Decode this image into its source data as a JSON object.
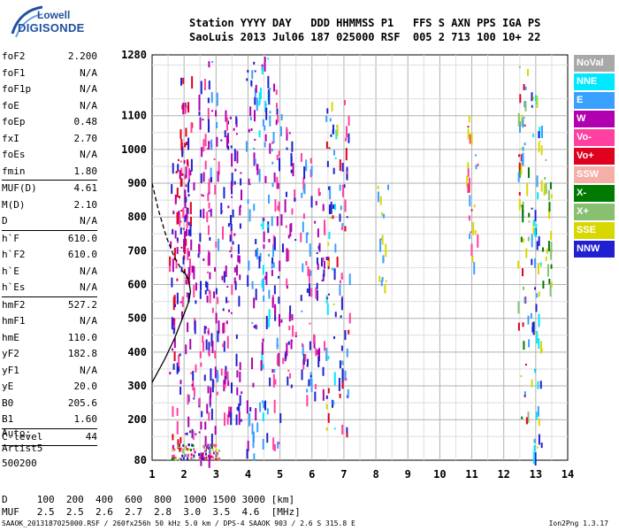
{
  "logo": {
    "line1": "Lowell",
    "line2": "DIGISONDE"
  },
  "header": {
    "row1": "Station YYYY DAY   DDD HHMMSS P1   FFS S AXN PPS IGA PS",
    "row2": "SaoLuis 2013 Jul06 187 025000 RSF  005 2 713 100 10+ 22"
  },
  "params": [
    {
      "label": "foF2",
      "value": "2.200"
    },
    {
      "label": "foF1",
      "value": "N/A"
    },
    {
      "label": "foF1p",
      "value": "N/A"
    },
    {
      "label": "foE",
      "value": "N/A"
    },
    {
      "label": "foEp",
      "value": "0.48"
    },
    {
      "label": "fxI",
      "value": "2.70"
    },
    {
      "label": "foEs",
      "value": "N/A"
    },
    {
      "label": "fmin",
      "value": "1.80"
    },
    {
      "sep": true
    },
    {
      "label": "MUF(D)",
      "value": "4.61"
    },
    {
      "label": "M(D)",
      "value": "2.10"
    },
    {
      "label": "D",
      "value": "N/A"
    },
    {
      "sep": true
    },
    {
      "label": "h`F",
      "value": "610.0"
    },
    {
      "label": "h`F2",
      "value": "610.0"
    },
    {
      "label": "h`E",
      "value": "N/A"
    },
    {
      "label": "h`Es",
      "value": "N/A"
    },
    {
      "sep": true
    },
    {
      "label": "hmF2",
      "value": "527.2"
    },
    {
      "label": "hmF1",
      "value": "N/A"
    },
    {
      "label": "hmE",
      "value": "110.0"
    },
    {
      "label": "yF2",
      "value": "182.8"
    },
    {
      "label": "yF1",
      "value": "N/A"
    },
    {
      "label": "yE",
      "value": "20.0"
    },
    {
      "label": "B0",
      "value": "205.6"
    },
    {
      "label": "B1",
      "value": "1.60"
    },
    {
      "sep": true
    },
    {
      "label": "C-level",
      "value": "44"
    },
    {
      "sep": true
    }
  ],
  "auto": {
    "line1": "Auto:",
    "line2": "Artist5",
    "line3": "500200"
  },
  "bottom": {
    "d_row": "D     100  200  400  600  800  1000 1500 3000 [km]",
    "muf_row": "MUF   2.5  2.5  2.6  2.7  2.8  3.0  3.5  4.6  [MHz]"
  },
  "footer": {
    "left": "SAAOK_2013187025000.RSF / 260fx256h 50 kHz 5.0 km / DPS-4 SAAOK 903 / 2.6 S 315.8 E",
    "right": "Ion2Png 1.3.17"
  },
  "legend": [
    {
      "label": "NoVal",
      "color": "#a8a8a8",
      "text": "#ffffff"
    },
    {
      "label": "NNE",
      "color": "#00e8ff",
      "text": "#ffffff"
    },
    {
      "label": "E",
      "color": "#3aa0ff",
      "text": "#ffffff"
    },
    {
      "label": "W",
      "color": "#b000b0",
      "text": "#ffffff"
    },
    {
      "label": "Vo-",
      "color": "#ff40a0",
      "text": "#ffffff"
    },
    {
      "label": "Vo+",
      "color": "#e00020",
      "text": "#ffffff"
    },
    {
      "label": "SSW",
      "color": "#f4b0a8",
      "text": "#ffffff"
    },
    {
      "label": "X-",
      "color": "#007a00",
      "text": "#ffffff"
    },
    {
      "label": "X+",
      "color": "#88c070",
      "text": "#ffffff"
    },
    {
      "label": "SSE",
      "color": "#d8d800",
      "text": "#ffffff"
    },
    {
      "label": "NNW",
      "color": "#2020d0",
      "text": "#ffffff"
    }
  ],
  "chart_data": {
    "type": "scatter",
    "xlim": [
      1,
      14
    ],
    "ylim": [
      80,
      1280
    ],
    "x_ticks": [
      1,
      2,
      3,
      4,
      5,
      6,
      7,
      8,
      9,
      10,
      11,
      12,
      13,
      14
    ],
    "y_ticks": [
      80,
      200,
      300,
      400,
      500,
      600,
      700,
      800,
      900,
      1000,
      1100,
      1280
    ],
    "grid": true,
    "legend_position": "right",
    "echo_clusters": [
      {
        "x": 1.7,
        "y0": 120,
        "y1": 1000,
        "colors": [
          "#ff40a0",
          "#e00020",
          "#b000b0",
          "#2020d0"
        ]
      },
      {
        "x": 1.9,
        "y0": 500,
        "y1": 1150,
        "colors": [
          "#e00020",
          "#ff40a0",
          "#b000b0"
        ]
      },
      {
        "x": 2.05,
        "y0": 560,
        "y1": 1240,
        "colors": [
          "#e00020",
          "#ff40a0",
          "#b000b0",
          "#2020d0"
        ]
      },
      {
        "x": 2.2,
        "y0": 150,
        "y1": 1000,
        "colors": [
          "#b000b0",
          "#2020d0",
          "#ff40a0"
        ]
      },
      {
        "x": 2.6,
        "y0": 100,
        "y1": 1250,
        "colors": [
          "#b000b0",
          "#ff40a0",
          "#2020d0"
        ]
      },
      {
        "x": 2.9,
        "y0": 90,
        "y1": 1280,
        "colors": [
          "#2020d0",
          "#b000b0",
          "#ff40a0",
          "#3aa0ff"
        ]
      },
      {
        "x": 3.3,
        "y0": 200,
        "y1": 1150,
        "colors": [
          "#b000b0",
          "#2020d0",
          "#ff40a0"
        ]
      },
      {
        "x": 3.6,
        "y0": 200,
        "y1": 1100,
        "colors": [
          "#2020d0",
          "#b000b0"
        ]
      },
      {
        "x": 4.1,
        "y0": 100,
        "y1": 1260,
        "colors": [
          "#2020d0",
          "#3aa0ff",
          "#b000b0"
        ]
      },
      {
        "x": 4.5,
        "y0": 100,
        "y1": 1280,
        "colors": [
          "#2020d0",
          "#00e8ff",
          "#3aa0ff",
          "#b000b0"
        ]
      },
      {
        "x": 4.9,
        "y0": 120,
        "y1": 1200,
        "colors": [
          "#2020d0",
          "#3aa0ff",
          "#b000b0",
          "#ff40a0"
        ]
      },
      {
        "x": 5.3,
        "y0": 300,
        "y1": 1100,
        "colors": [
          "#2020d0",
          "#b000b0",
          "#ff40a0"
        ]
      },
      {
        "x": 5.8,
        "y0": 250,
        "y1": 1000,
        "colors": [
          "#2020d0",
          "#3aa0ff",
          "#ff40a0"
        ]
      },
      {
        "x": 6.2,
        "y0": 250,
        "y1": 900,
        "colors": [
          "#2020d0",
          "#ff40a0",
          "#b000b0"
        ]
      },
      {
        "x": 6.6,
        "y0": 150,
        "y1": 1150,
        "colors": [
          "#3aa0ff",
          "#2020d0",
          "#00e8ff",
          "#e00020",
          "#d8d800"
        ]
      },
      {
        "x": 7.0,
        "y0": 150,
        "y1": 1150,
        "colors": [
          "#e00020",
          "#3aa0ff",
          "#2020d0",
          "#ff40a0"
        ]
      },
      {
        "x": 8.2,
        "y0": 600,
        "y1": 900,
        "colors": [
          "#3aa0ff",
          "#d8d800"
        ]
      },
      {
        "x": 11.0,
        "y0": 650,
        "y1": 1200,
        "colors": [
          "#e00020",
          "#ff40a0",
          "#3aa0ff",
          "#d8d800"
        ]
      },
      {
        "x": 12.6,
        "y0": 180,
        "y1": 1250,
        "colors": [
          "#007a00",
          "#88c070",
          "#d8d800",
          "#3aa0ff",
          "#e00020"
        ]
      },
      {
        "x": 13.0,
        "y0": 100,
        "y1": 1200,
        "colors": [
          "#00e8ff",
          "#3aa0ff",
          "#d8d800",
          "#2020d0"
        ]
      },
      {
        "x": 13.3,
        "y0": 600,
        "y1": 1000,
        "colors": [
          "#007a00",
          "#88c070",
          "#d8d800"
        ]
      }
    ]
  }
}
